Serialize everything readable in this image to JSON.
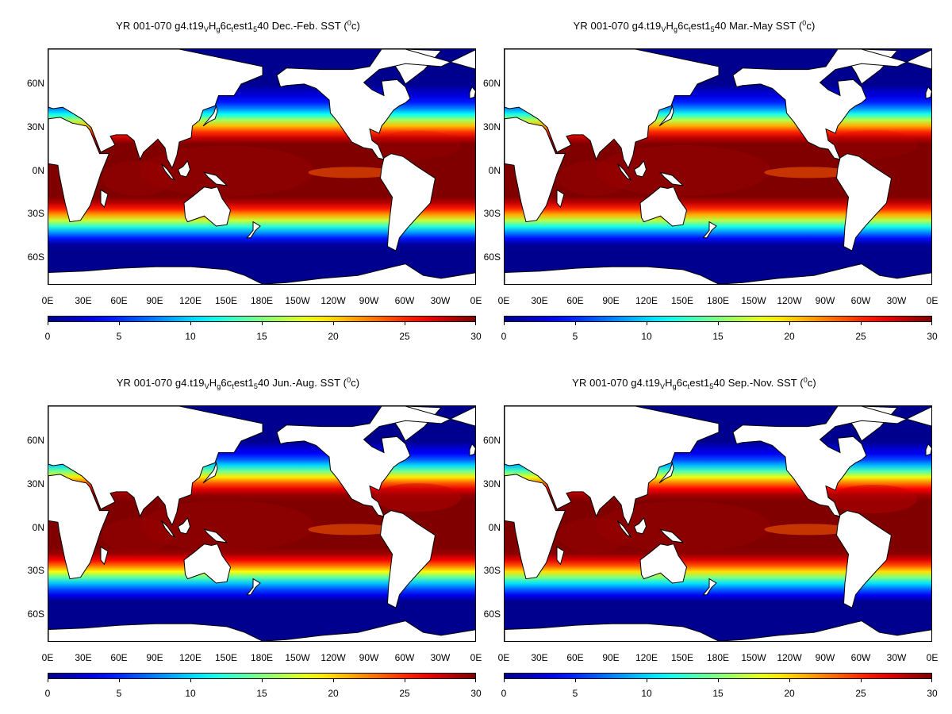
{
  "panels": [
    {
      "title": {
        "main": "YR 001-070 g4.t19",
        "s1": "V",
        "m1": "H",
        "s2": "g",
        "m2": "6c",
        "s3": "t",
        "m3": "est1",
        "s4": "5",
        "m4": "40 Dec.-Feb. SST (",
        "sup": "0",
        "end": "c)"
      },
      "season": "DJF",
      "shift": 0
    },
    {
      "title": {
        "main": "YR 001-070 g4.t19",
        "s1": "V",
        "m1": "H",
        "s2": "g",
        "m2": "6c",
        "s3": "t",
        "m3": "est1",
        "s4": "5",
        "m4": "40 Mar.-May SST (",
        "sup": "0",
        "end": "c)"
      },
      "season": "MAM",
      "shift": 0.5
    },
    {
      "title": {
        "main": "YR 001-070 g4.t19",
        "s1": "V",
        "m1": "H",
        "s2": "g",
        "m2": "6c",
        "s3": "t",
        "m3": "est1",
        "s4": "5",
        "m4": "40 Jun.-Aug. SST (",
        "sup": "0",
        "end": "c)"
      },
      "season": "JJA",
      "shift": 3
    },
    {
      "title": {
        "main": "YR 001-070 g4.t19",
        "s1": "V",
        "m1": "H",
        "s2": "g",
        "m2": "6c",
        "s3": "t",
        "m3": "est1",
        "s4": "5",
        "m4": "40 Sep.-Nov. SST (",
        "sup": "0",
        "end": "c)"
      },
      "season": "SON",
      "shift": 2
    }
  ],
  "lat_labels": [
    "60N",
    "30N",
    "0N",
    "30S",
    "60S"
  ],
  "lat_values": [
    60,
    30,
    0,
    -30,
    -60
  ],
  "lon_labels": [
    "0E",
    "30E",
    "60E",
    "90E",
    "120E",
    "150E",
    "180E",
    "150W",
    "120W",
    "90W",
    "60W",
    "30W",
    "0E"
  ],
  "colorbar": {
    "labels": [
      "0",
      "5",
      "10",
      "15",
      "20",
      "25",
      "30"
    ],
    "min": 0,
    "max": 30
  },
  "colors": {
    "scale": [
      "#00008f",
      "#0000ff",
      "#0080ff",
      "#00ffff",
      "#80ff80",
      "#ffff00",
      "#ff8000",
      "#ff0000",
      "#800000"
    ],
    "land": "#ffffff",
    "coast": "#000000"
  }
}
